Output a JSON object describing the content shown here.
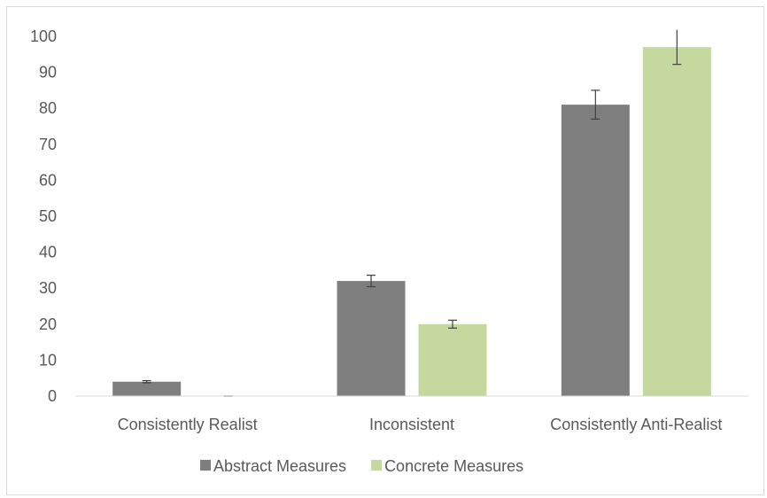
{
  "chart_data": {
    "type": "bar",
    "categories": [
      "Consistently Realist",
      "Inconsistent",
      "Consistently Anti-Realist"
    ],
    "series": [
      {
        "name": "Abstract Measures",
        "values": [
          4,
          32,
          81
        ],
        "errors": [
          0.3,
          1.6,
          4.0
        ],
        "color": "#7f7f7f"
      },
      {
        "name": "Concrete Measures",
        "values": [
          0,
          20,
          97
        ],
        "errors": [
          0,
          1.1,
          4.8
        ],
        "color": "#c5d99e"
      }
    ],
    "ylim": [
      0,
      100
    ],
    "yticks": [
      0,
      10,
      20,
      30,
      40,
      50,
      60,
      70,
      80,
      90,
      100
    ],
    "grid": false,
    "legend": "bottom",
    "title": "",
    "xlabel": "",
    "ylabel": ""
  }
}
